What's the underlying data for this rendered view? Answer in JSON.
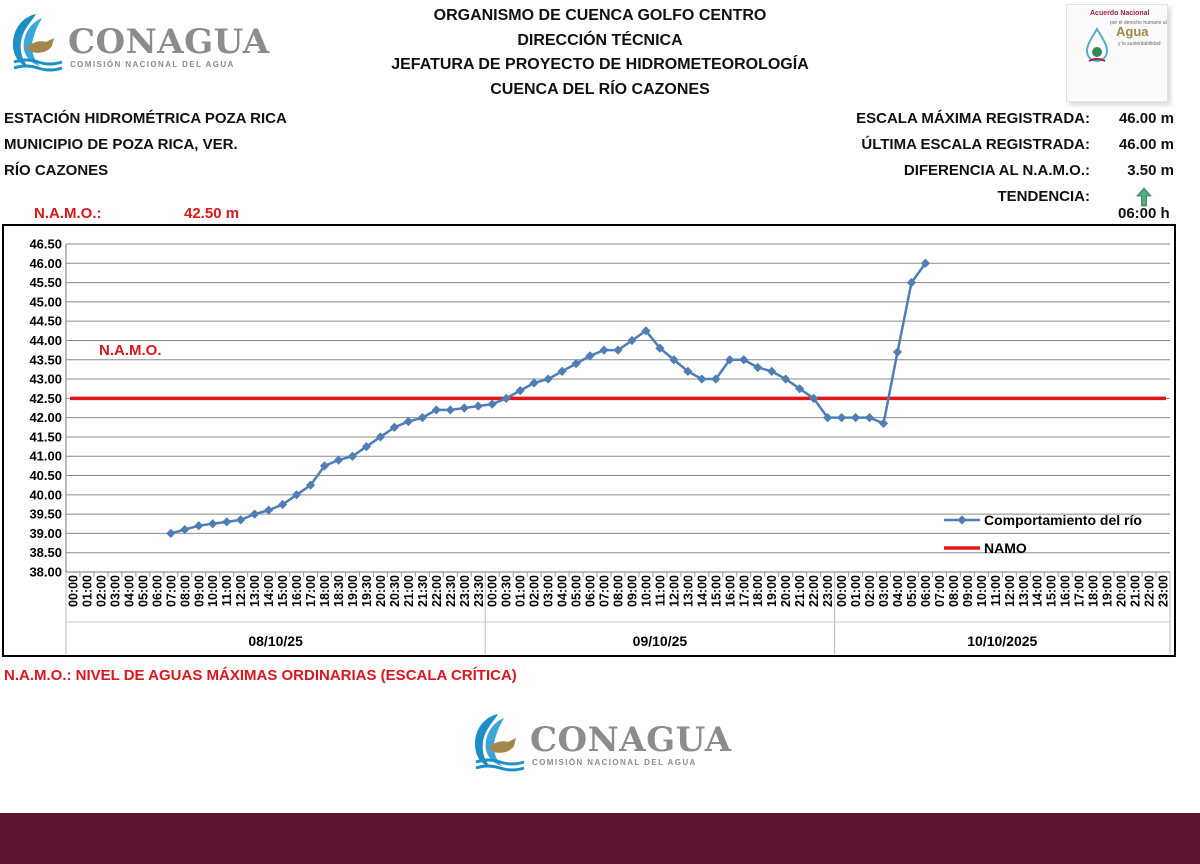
{
  "logo": {
    "name": "CONAGUA",
    "subtitle": "COMISIÓN NACIONAL DEL AGUA"
  },
  "header": {
    "line1": "ORGANISMO DE CUENCA GOLFO CENTRO",
    "line2": "DIRECCIÓN TÉCNICA",
    "line3": "JEFATURA DE PROYECTO DE HIDROMETEOROLOGÍA",
    "line4": "CUENCA DEL RÍO CAZONES"
  },
  "badge": {
    "title": "Acuerdo Nacional",
    "sub": "por el derecho humano al",
    "word": "Agua",
    "sub2": "y la sustentabilidad"
  },
  "station": {
    "name": "ESTACIÓN HIDROMÉTRICA POZA RICA",
    "municipality": "MUNICIPIO DE POZA RICA, VER.",
    "river": "RÍO CAZONES"
  },
  "stats": {
    "max_label": "ESCALA MÁXIMA REGISTRADA:",
    "max_value": "46.00 m",
    "last_label": "ÚLTIMA ESCALA REGISTRADA:",
    "last_value": "46.00 m",
    "diff_label": "DIFERENCIA AL N.A.M.O.:",
    "diff_value": "3.50 m",
    "trend_label": "TENDENCIA:",
    "trend": "up"
  },
  "namo": {
    "label": "N.A.M.O.:",
    "value": "42.50 m"
  },
  "time": "06:00 h",
  "footnote": "N.A.M.O.: NIVEL DE AGUAS MÁXIMAS ORDINARIAS (ESCALA CRÍTICA)",
  "colors": {
    "series": "#4f7db5",
    "namo": "#e0161b",
    "grid": "#8c8c8c",
    "footer": "#5e1432",
    "trend": "#4caf7d"
  },
  "chart_data": {
    "type": "line",
    "ylim": [
      38.0,
      46.5
    ],
    "ystep": 0.5,
    "grid": true,
    "legend_position": "bottom-right",
    "hours": [
      "00:00",
      "01:00",
      "02:00",
      "03:00",
      "04:00",
      "05:00",
      "06:00",
      "07:00",
      "08:00",
      "09:00",
      "10:00",
      "11:00",
      "12:00",
      "13:00",
      "14:00",
      "15:00",
      "16:00",
      "17:00",
      "18:00",
      "19:00",
      "20:00",
      "21:00",
      "22:00",
      "23:00"
    ],
    "extra_ticks": [
      "18:30",
      "19:30",
      "20:30",
      "21:30",
      "22:30",
      "23:30",
      "00:30"
    ],
    "days": [
      "08/10/25",
      "09/10/25",
      "10/10/2025"
    ],
    "series": [
      {
        "name": "Comportamiento del río",
        "x": [
          "08/10/25 07:00",
          "08/10/25 08:00",
          "08/10/25 09:00",
          "08/10/25 10:00",
          "08/10/25 11:00",
          "08/10/25 12:00",
          "08/10/25 13:00",
          "08/10/25 14:00",
          "08/10/25 15:00",
          "08/10/25 16:00",
          "08/10/25 17:00",
          "08/10/25 18:00",
          "08/10/25 18:30",
          "08/10/25 19:00",
          "08/10/25 19:30",
          "08/10/25 20:00",
          "08/10/25 20:30",
          "08/10/25 21:00",
          "08/10/25 21:30",
          "08/10/25 22:00",
          "08/10/25 22:30",
          "08/10/25 23:00",
          "08/10/25 23:30",
          "09/10/25 00:00",
          "09/10/25 00:30",
          "09/10/25 01:00",
          "09/10/25 02:00",
          "09/10/25 03:00",
          "09/10/25 04:00",
          "09/10/25 05:00",
          "09/10/25 06:00",
          "09/10/25 07:00",
          "09/10/25 08:00",
          "09/10/25 09:00",
          "09/10/25 10:00",
          "09/10/25 11:00",
          "09/10/25 12:00",
          "09/10/25 13:00",
          "09/10/25 14:00",
          "09/10/25 15:00",
          "09/10/25 16:00",
          "09/10/25 17:00",
          "09/10/25 18:00",
          "09/10/25 19:00",
          "09/10/25 20:00",
          "09/10/25 21:00",
          "09/10/25 22:00",
          "09/10/25 23:00",
          "10/10/2025 00:00",
          "10/10/2025 01:00",
          "10/10/2025 02:00",
          "10/10/2025 03:00",
          "10/10/2025 04:00",
          "10/10/2025 05:00",
          "10/10/2025 06:00"
        ],
        "values": [
          39.0,
          39.1,
          39.2,
          39.25,
          39.3,
          39.35,
          39.5,
          39.6,
          39.75,
          40.0,
          40.25,
          40.75,
          40.9,
          41.0,
          41.25,
          41.5,
          41.75,
          41.9,
          42.0,
          42.2,
          42.2,
          42.25,
          42.3,
          42.35,
          42.5,
          42.7,
          42.9,
          43.0,
          43.2,
          43.4,
          43.6,
          43.75,
          43.75,
          44.0,
          44.25,
          43.8,
          43.5,
          43.2,
          43.0,
          43.0,
          43.5,
          43.5,
          43.3,
          43.2,
          43.0,
          42.75,
          42.5,
          42.0,
          42.0,
          42.0,
          42.0,
          41.85,
          43.7,
          45.5,
          46.0
        ]
      },
      {
        "name": "NAMO",
        "constant": 42.5
      }
    ]
  }
}
